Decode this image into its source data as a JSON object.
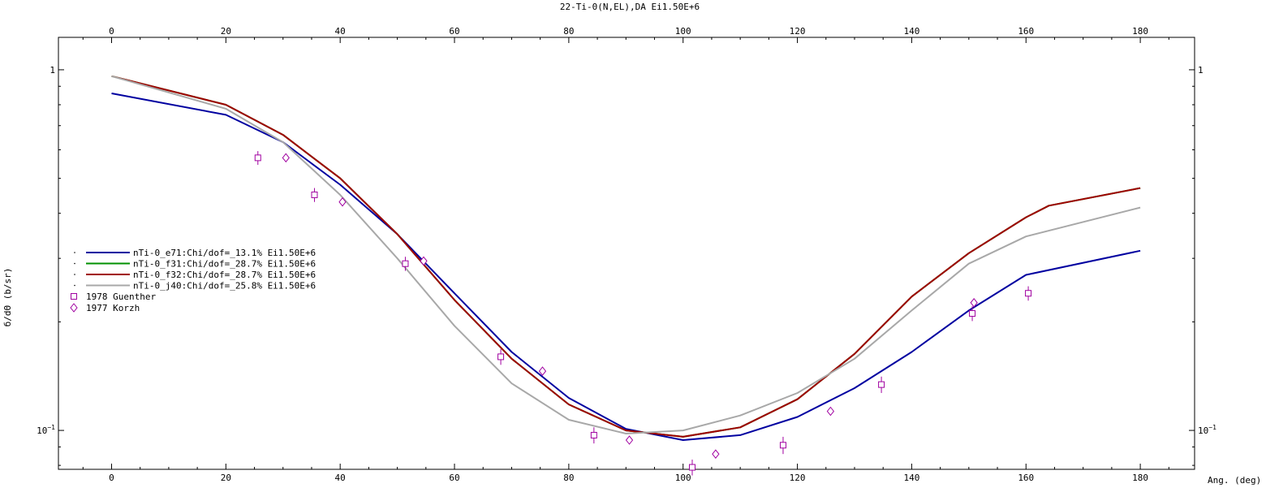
{
  "chart_data": {
    "type": "line",
    "title": "22-Ti-0(N,EL),DA Ei1.50E+6",
    "xlabel": "Ang. (deg)",
    "ylabel": "б/dΘ (b/sr)",
    "xlim": [
      -9.3,
      189.5
    ],
    "ylim": [
      0.078,
      1.23
    ],
    "yscale": "log",
    "x_ticks": [
      0,
      20,
      40,
      60,
      80,
      100,
      120,
      140,
      160,
      180
    ],
    "x_tick_labels": [
      "0",
      "20",
      "40",
      "60",
      "80",
      "100",
      "120",
      "140",
      "160",
      "180"
    ],
    "y_ticks": [
      0.1,
      1
    ],
    "y_tick_labels": [
      {
        "base": "10",
        "exp": "−1"
      },
      {
        "base": "1",
        "exp": ""
      }
    ],
    "legend_position": "left",
    "series": [
      {
        "name": "nTi-0_e71:Chi/dof=_13.1% Ei1.50E+6",
        "color": "#0000a0",
        "x": [
          0,
          20,
          30,
          40,
          50,
          60,
          70,
          80,
          90,
          100,
          110,
          120,
          130,
          140,
          150,
          160,
          180
        ],
        "y": [
          0.86,
          0.75,
          0.63,
          0.48,
          0.35,
          0.24,
          0.165,
          0.123,
          0.101,
          0.094,
          0.097,
          0.109,
          0.131,
          0.165,
          0.215,
          0.27,
          0.315
        ]
      },
      {
        "name": "nTi-0_f31:Chi/dof=_28.7% Ei1.50E+6",
        "color": "#009000",
        "x": [
          0,
          20,
          30,
          40,
          50,
          60,
          70,
          80,
          90,
          100,
          110,
          120,
          130,
          140,
          150,
          160,
          164,
          180
        ],
        "y": [
          0.96,
          0.8,
          0.66,
          0.5,
          0.35,
          0.23,
          0.158,
          0.118,
          0.1,
          0.096,
          0.102,
          0.122,
          0.163,
          0.235,
          0.31,
          0.39,
          0.42,
          0.47
        ]
      },
      {
        "name": "nTi-0_f32:Chi/dof=_28.7% Ei1.50E+6",
        "color": "#a00000",
        "x": [
          0,
          20,
          30,
          40,
          50,
          60,
          70,
          80,
          90,
          100,
          110,
          120,
          130,
          140,
          150,
          160,
          164,
          180
        ],
        "y": [
          0.96,
          0.8,
          0.66,
          0.5,
          0.35,
          0.23,
          0.158,
          0.118,
          0.1,
          0.096,
          0.102,
          0.122,
          0.163,
          0.235,
          0.31,
          0.39,
          0.42,
          0.47
        ]
      },
      {
        "name": "nTi-0_j40:Chi/dof=_25.8% Ei1.50E+6",
        "color": "#a8a8a8",
        "x": [
          0,
          20,
          30,
          40,
          50,
          60,
          70,
          80,
          90,
          100,
          110,
          120,
          130,
          140,
          150,
          160,
          180
        ],
        "y": [
          0.96,
          0.78,
          0.63,
          0.45,
          0.3,
          0.195,
          0.135,
          0.107,
          0.098,
          0.1,
          0.11,
          0.127,
          0.158,
          0.215,
          0.29,
          0.345,
          0.415
        ]
      }
    ],
    "data_series": [
      {
        "name": "1978 Guenther",
        "marker": "square",
        "color": "#a000a0",
        "x": [
          25.6,
          35.5,
          51.4,
          68.1,
          84.4,
          101.6,
          117.5,
          134.7,
          150.6,
          160.4
        ],
        "y": [
          0.57,
          0.45,
          0.29,
          0.16,
          0.097,
          0.079,
          0.091,
          0.134,
          0.211,
          0.24
        ],
        "err": [
          0.025,
          0.02,
          0.013,
          0.008,
          0.005,
          0.004,
          0.005,
          0.007,
          0.01,
          0.011
        ]
      },
      {
        "name": "1977 Korzh",
        "marker": "diamond",
        "color": "#a000a0",
        "x": [
          30.5,
          40.4,
          54.6,
          75.4,
          90.6,
          105.7,
          125.8,
          150.9
        ],
        "y": [
          0.57,
          0.43,
          0.295,
          0.146,
          0.094,
          0.086,
          0.113,
          0.226
        ],
        "err": [
          0,
          0,
          0,
          0,
          0,
          0,
          0,
          0
        ]
      }
    ]
  }
}
